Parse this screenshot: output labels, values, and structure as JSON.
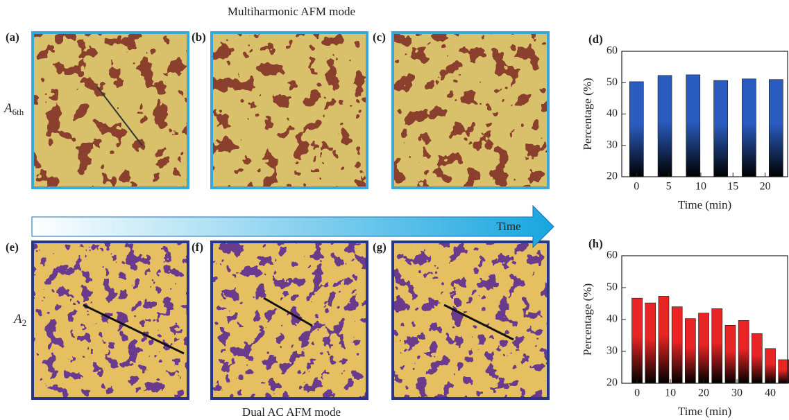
{
  "top_title": "Multiharmonic AFM mode",
  "bottom_title": "Dual AC AFM mode",
  "arrow_label": "Time",
  "panels": [
    "(a)",
    "(b)",
    "(c)",
    "(e)",
    "(f)",
    "(g)"
  ],
  "row_labels": [
    {
      "symbol": "A",
      "subscript": "6th"
    },
    {
      "symbol": "A",
      "subscript": "2"
    }
  ],
  "chart_data": [
    {
      "type": "bar",
      "label": "(d)",
      "xlabel": "Time (min)",
      "ylabel": "Percentage (%)",
      "color": "#2a5cc0",
      "x": [
        0,
        4.4,
        8.8,
        13.1,
        17.5,
        21.7
      ],
      "values": [
        50.3,
        52.3,
        52.5,
        50.7,
        51.2,
        51.0
      ],
      "xlim": [
        -2.3,
        23.5
      ],
      "xticks": [
        0,
        5,
        10,
        15,
        20
      ],
      "ylim": [
        20,
        60
      ],
      "yticks": [
        20,
        30,
        40,
        50,
        60
      ]
    },
    {
      "type": "bar",
      "label": "(h)",
      "xlabel": "Time (min)",
      "ylabel": "Percentage (%)",
      "color": "#e82424",
      "x": [
        0,
        4,
        8,
        12,
        16,
        20,
        24,
        28,
        32,
        36,
        40,
        44
      ],
      "values": [
        46.7,
        45.2,
        47.3,
        44.0,
        40.3,
        42.0,
        43.4,
        38.2,
        39.7,
        35.6,
        30.9,
        27.4
      ],
      "xlim": [
        -4.6,
        45.2
      ],
      "xticks": [
        0,
        10,
        20,
        30,
        40
      ],
      "ylim": [
        20,
        60
      ],
      "yticks": [
        20,
        30,
        40,
        50,
        60
      ]
    }
  ]
}
